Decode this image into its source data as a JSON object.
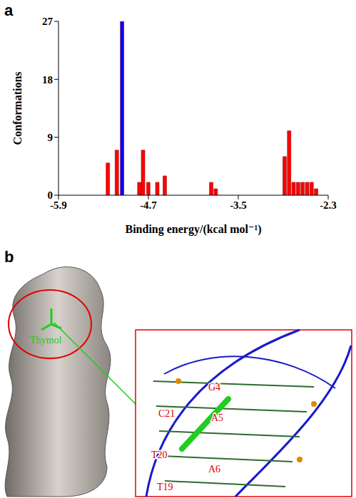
{
  "panel_labels": [
    "a",
    "b"
  ],
  "chart_data": {
    "type": "bar",
    "x_label": "Binding energy/(kcal mol⁻¹)",
    "y_label": "Conformations",
    "x": [
      -5.24,
      -5.12,
      -5.05,
      -4.82,
      -4.77,
      -4.7,
      -4.58,
      -4.48,
      -3.86,
      -3.8,
      -2.88,
      -2.82,
      -2.76,
      -2.7,
      -2.64,
      -2.58,
      -2.52,
      -2.46
    ],
    "values": [
      5,
      7,
      27,
      2,
      7,
      2,
      2,
      3,
      2,
      1,
      6,
      10,
      2,
      2,
      2,
      2,
      2,
      1
    ],
    "colors": [
      "#ff0000",
      "#ff0000",
      "#0000ff",
      "#ff0000",
      "#ff0000",
      "#ff0000",
      "#ff0000",
      "#ff0000",
      "#ff0000",
      "#ff0000",
      "#ff0000",
      "#ff0000",
      "#ff0000",
      "#ff0000",
      "#ff0000",
      "#ff0000",
      "#ff0000",
      "#ff0000"
    ],
    "xlim": [
      -5.9,
      -2.3
    ],
    "xticks": [
      -5.9,
      -4.7,
      -3.5,
      -2.3
    ],
    "ylim": [
      0,
      27
    ],
    "yticks": [
      0,
      9,
      18,
      27
    ]
  },
  "diagram": {
    "ligand": "Thymol",
    "residues": [
      "C21",
      "G4",
      "T20",
      "A5",
      "T19",
      "A6"
    ]
  }
}
